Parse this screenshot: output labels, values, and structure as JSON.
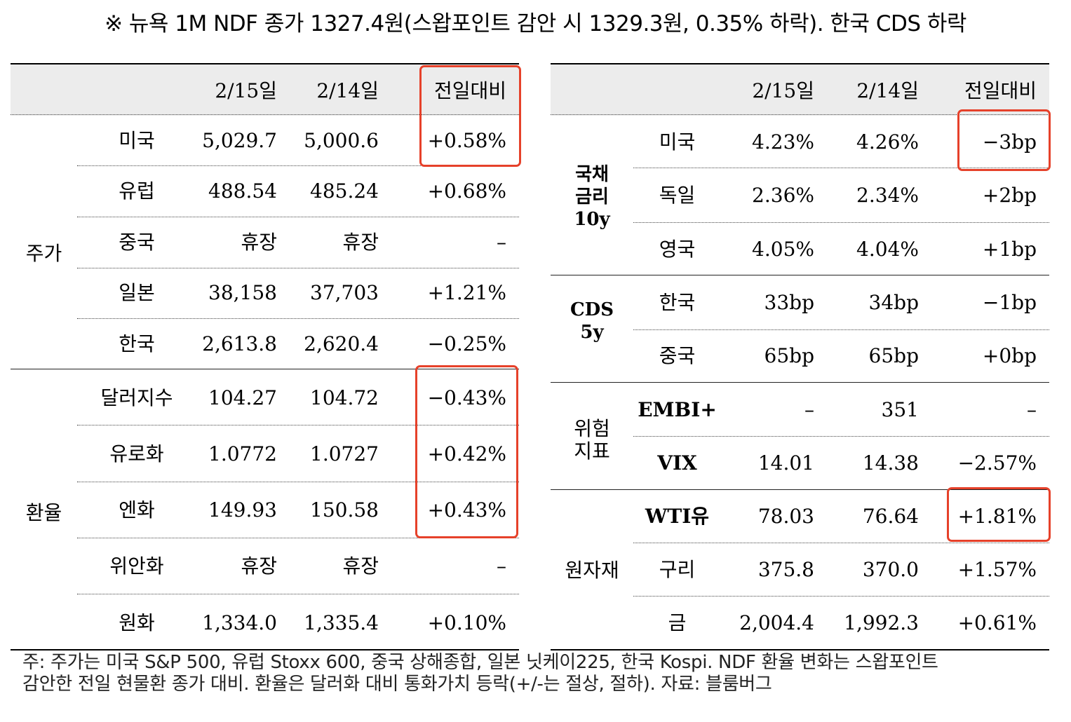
{
  "title": "※ 뉴욕 1M NDF 종가 1327.4원(스왑포인트 감안 시 1329.3원, 0.35% 하락). 한국 CDS 하락",
  "left": {
    "headers": [
      "2/15일",
      "2/14일",
      "전일대비"
    ],
    "groups": [
      {
        "label": "주가",
        "rows": [
          {
            "name": "미국",
            "d1": "5,029.7",
            "d2": "5,000.6",
            "chg": "+0.58%"
          },
          {
            "name": "유럽",
            "d1": "488.54",
            "d2": "485.24",
            "chg": "+0.68%"
          },
          {
            "name": "중국",
            "d1": "휴장",
            "d2": "휴장",
            "chg": "–"
          },
          {
            "name": "일본",
            "d1": "38,158",
            "d2": "37,703",
            "chg": "+1.21%"
          },
          {
            "name": "한국",
            "d1": "2,613.8",
            "d2": "2,620.4",
            "chg": "−0.25%"
          }
        ]
      },
      {
        "label": "환율",
        "rows": [
          {
            "name": "달러지수",
            "d1": "104.27",
            "d2": "104.72",
            "chg": "−0.43%"
          },
          {
            "name": "유로화",
            "d1": "1.0772",
            "d2": "1.0727",
            "chg": "+0.42%"
          },
          {
            "name": "엔화",
            "d1": "149.93",
            "d2": "150.58",
            "chg": "+0.43%"
          },
          {
            "name": "위안화",
            "d1": "휴장",
            "d2": "휴장",
            "chg": "–"
          },
          {
            "name": "원화",
            "d1": "1,334.0",
            "d2": "1,335.4",
            "chg": "+0.10%"
          }
        ]
      }
    ]
  },
  "right": {
    "headers": [
      "2/15일",
      "2/14일",
      "전일대비"
    ],
    "groups": [
      {
        "label": "국채\n금리\n10y",
        "rows": [
          {
            "name": "미국",
            "d1": "4.23%",
            "d2": "4.26%",
            "chg": "−3bp"
          },
          {
            "name": "독일",
            "d1": "2.36%",
            "d2": "2.34%",
            "chg": "+2bp"
          },
          {
            "name": "영국",
            "d1": "4.05%",
            "d2": "4.04%",
            "chg": "+1bp"
          }
        ]
      },
      {
        "label": "CDS\n5y",
        "rows": [
          {
            "name": "한국",
            "d1": "33bp",
            "d2": "34bp",
            "chg": "−1bp"
          },
          {
            "name": "중국",
            "d1": "65bp",
            "d2": "65bp",
            "chg": "+0bp"
          }
        ]
      },
      {
        "label": "위험\n지표",
        "rows": [
          {
            "name": "EMBI+",
            "d1": "–",
            "d2": "351",
            "chg": "–"
          },
          {
            "name": "VIX",
            "d1": "14.01",
            "d2": "14.38",
            "chg": "−2.57%"
          }
        ]
      },
      {
        "label": "원자재",
        "rows": [
          {
            "name": "WTI유",
            "d1": "78.03",
            "d2": "76.64",
            "chg": "+1.81%"
          },
          {
            "name": "구리",
            "d1": "375.8",
            "d2": "370.0",
            "chg": "+1.57%"
          },
          {
            "name": "금",
            "d1": "2,004.4",
            "d2": "1,992.3",
            "chg": "+0.61%"
          }
        ]
      }
    ]
  },
  "footnote": [
    "주: 주가는 미국 S&P 500, 유럽 Stoxx 600, 중국 상해종합, 일본 닛케이225, 한국 Kospi. NDF 환율 변화는 스왑포인트",
    "감안한 전일 현물환 종가 대비. 환율은 달러화 대비 통화가치 등락(+/-는 절상, 절하). 자료: 블룸버그"
  ]
}
